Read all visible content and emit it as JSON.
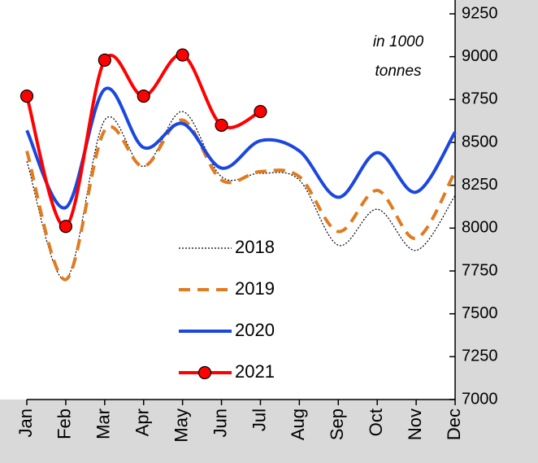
{
  "chart_data": {
    "type": "line",
    "annotation": [
      "in 1000",
      "tonnes"
    ],
    "categories": [
      "Jan",
      "Feb",
      "Mar",
      "Apr",
      "May",
      "Jun",
      "Jul",
      "Aug",
      "Sep",
      "Oct",
      "Nov",
      "Dec"
    ],
    "series": [
      {
        "name": "2018",
        "color": "#000000",
        "style": "dotted",
        "values": [
          8390,
          7700,
          8630,
          8360,
          8680,
          8300,
          8320,
          8280,
          7900,
          8110,
          7870,
          8190
        ]
      },
      {
        "name": "2019",
        "color": "#e07b20",
        "style": "dashed",
        "values": [
          8450,
          7700,
          8570,
          8360,
          8630,
          8280,
          8330,
          8300,
          7980,
          8220,
          7940,
          8330
        ]
      },
      {
        "name": "2020",
        "color": "#1a47e0",
        "style": "solid",
        "values": [
          8570,
          8120,
          8810,
          8470,
          8610,
          8350,
          8510,
          8450,
          8180,
          8440,
          8210,
          8560
        ]
      },
      {
        "name": "2021",
        "color": "#ff0000",
        "style": "solid",
        "markers": true,
        "values": [
          8770,
          8010,
          8980,
          8770,
          9010,
          8600,
          8680,
          null,
          null,
          null,
          null,
          null
        ]
      }
    ],
    "ylim": [
      7000,
      9250
    ],
    "yticks": [
      7000,
      7250,
      7500,
      7750,
      8000,
      8250,
      8500,
      8750,
      9000,
      9250
    ],
    "y_axis_side": "right",
    "smooth": true,
    "legend": "lower center"
  }
}
